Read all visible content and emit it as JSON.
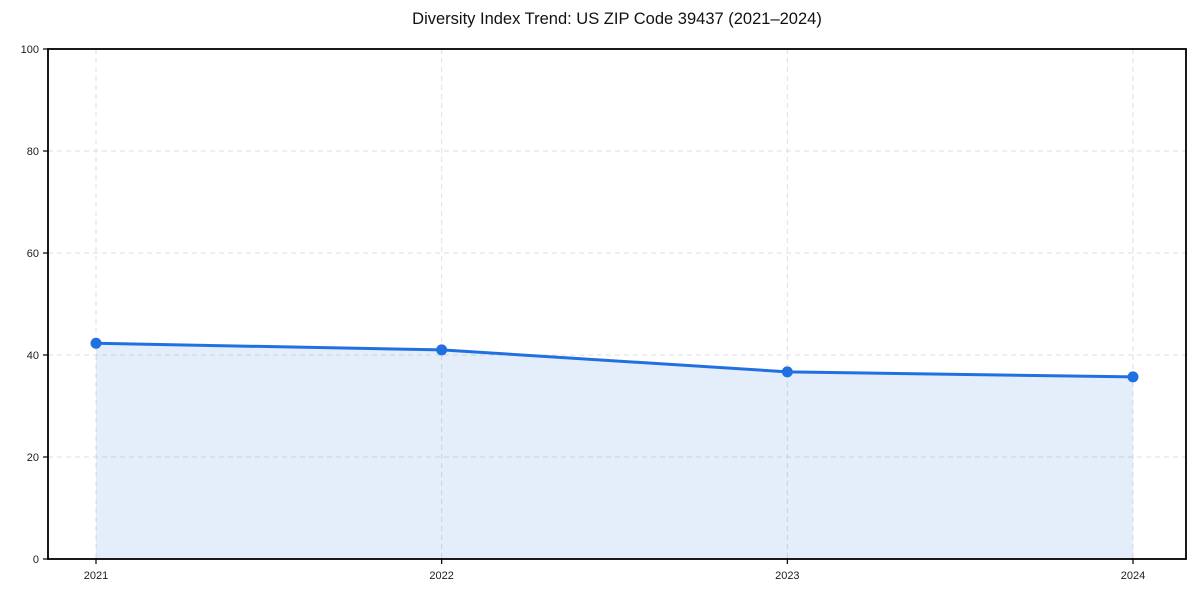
{
  "chart_data": {
    "type": "area",
    "title": "Diversity Index Trend: US ZIP Code 39437 (2021–2024)",
    "x": [
      "2021",
      "2022",
      "2023",
      "2024"
    ],
    "series": [
      {
        "name": "Diversity Index",
        "values": [
          42.3,
          41.0,
          36.7,
          35.7
        ]
      }
    ],
    "xlabel": "",
    "ylabel": "",
    "ylim": [
      0,
      100
    ],
    "yticks": [
      0,
      20,
      40,
      60,
      80,
      100
    ],
    "grid": "dashed-both-axes",
    "legend": "none",
    "line_color": "#2170e2",
    "fill_color": "rgba(33, 112, 226, 0.12)",
    "marker": "circle",
    "spine_color": "#000000",
    "tick_label_color": "#1c1c1c"
  }
}
